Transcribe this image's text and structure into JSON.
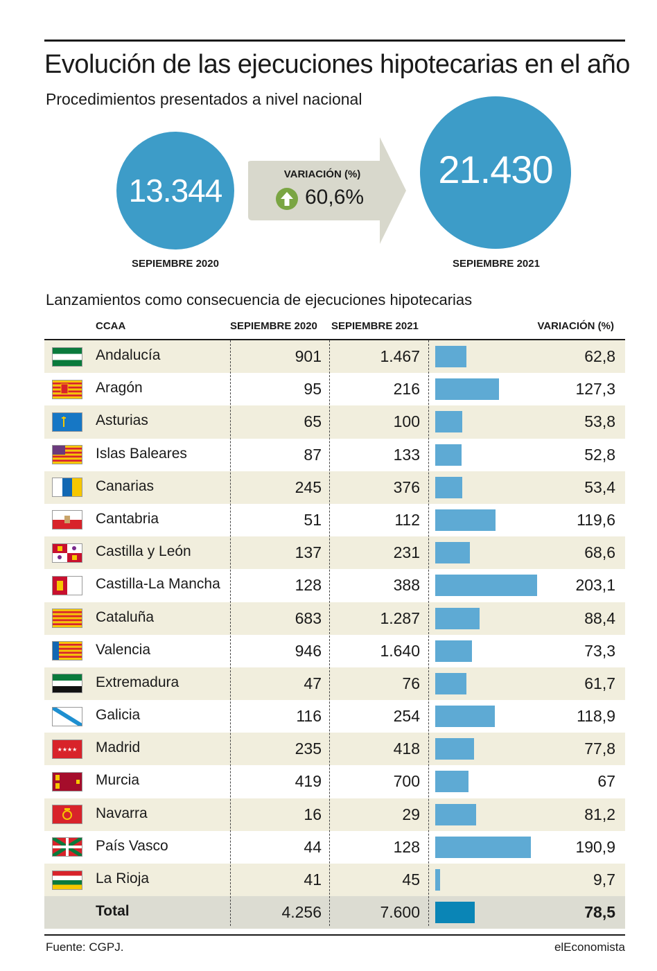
{
  "title": "Evolución de las ejecuciones hipotecarias en el año",
  "subtitle": "Procedimientos presentados a nivel nacional",
  "summary": {
    "value_2020": "13.344",
    "label_2020": "SEPIEMBRE 2020",
    "value_2021": "21.430",
    "label_2021": "SEPIEMBRE 2021",
    "variation_title": "VARIACIÓN (%)",
    "variation_value": "60,6%",
    "icon": "up-arrow-circle-icon",
    "icon_color": "#7aa543"
  },
  "table": {
    "title": "Lanzamientos como consecuencia de ejecuciones hipotecarias",
    "headers": {
      "ccaa": "CCAA",
      "sep2020": "SEPIEMBRE 2020",
      "sep2021": "SEPIEMBRE 2021",
      "variacion": "VARIACIÓN (%)"
    }
  },
  "chart_data": {
    "type": "bar",
    "categories": [
      "Andalucía",
      "Aragón",
      "Asturias",
      "Islas Baleares",
      "Canarias",
      "Cantabria",
      "Castilla y León",
      "Castilla-La Mancha",
      "Cataluña",
      "Valencia",
      "Extremadura",
      "Galicia",
      "Madrid",
      "Murcia",
      "Navarra",
      "País Vasco",
      "La Rioja",
      "Total"
    ],
    "sep2020_labels": [
      "901",
      "95",
      "65",
      "87",
      "245",
      "51",
      "137",
      "128",
      "683",
      "946",
      "47",
      "116",
      "235",
      "419",
      "16",
      "44",
      "41",
      "4.256"
    ],
    "sep2021_labels": [
      "1.467",
      "216",
      "100",
      "133",
      "376",
      "112",
      "231",
      "388",
      "1.287",
      "1.640",
      "76",
      "254",
      "418",
      "700",
      "29",
      "128",
      "45",
      "7.600"
    ],
    "variation_labels": [
      "62,8",
      "127,3",
      "53,8",
      "52,8",
      "53,4",
      "119,6",
      "68,6",
      "203,1",
      "88,4",
      "73,3",
      "61,7",
      "118,9",
      "77,8",
      "67",
      "81,2",
      "190,9",
      "9,7",
      "78,5"
    ],
    "values": [
      62.8,
      127.3,
      53.8,
      52.8,
      53.4,
      119.6,
      68.6,
      203.1,
      88.4,
      73.3,
      61.7,
      118.9,
      77.8,
      67,
      81.2,
      190.9,
      9.7,
      78.5
    ],
    "flags": [
      "andalucia-flag-icon",
      "aragon-flag-icon",
      "asturias-flag-icon",
      "baleares-flag-icon",
      "canarias-flag-icon",
      "cantabria-flag-icon",
      "castilla-leon-flag-icon",
      "castilla-la-mancha-flag-icon",
      "cataluna-flag-icon",
      "valencia-flag-icon",
      "extremadura-flag-icon",
      "galicia-flag-icon",
      "madrid-flag-icon",
      "murcia-flag-icon",
      "navarra-flag-icon",
      "pais-vasco-flag-icon",
      "la-rioja-flag-icon",
      ""
    ],
    "xlim": [
      0,
      203.1
    ],
    "bar_color": "#5eaad4",
    "total_bar_color": "#0a85b6"
  },
  "footer": {
    "source": "Fuente: CGPJ.",
    "brand": "elEconomista"
  }
}
